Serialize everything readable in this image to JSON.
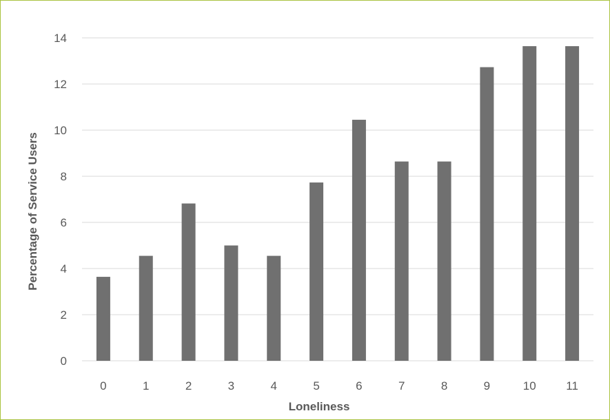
{
  "chart_data": {
    "type": "bar",
    "categories": [
      "0",
      "1",
      "2",
      "3",
      "4",
      "5",
      "6",
      "7",
      "8",
      "9",
      "10",
      "11"
    ],
    "values": [
      3.64,
      4.55,
      6.82,
      5.0,
      4.55,
      7.73,
      10.45,
      8.64,
      8.64,
      12.73,
      13.64,
      13.64
    ],
    "xlabel": "Loneliness",
    "ylabel": "Percentage of Service Users",
    "ylim": [
      0,
      14
    ],
    "yticks": [
      0,
      2,
      4,
      6,
      8,
      10,
      12,
      14
    ],
    "grid": true,
    "legend": "none",
    "bar_color": "#707070",
    "grid_color": "#d9d9d9",
    "border_color": "#a9c23f"
  }
}
